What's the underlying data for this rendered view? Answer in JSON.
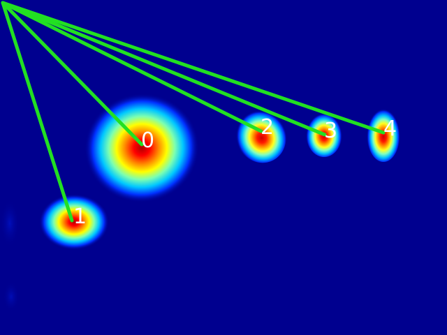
{
  "heatmap": {
    "background_color": "#00008f",
    "colormap": [
      "#00008f",
      "#0030ff",
      "#00c8ff",
      "#7dffb0",
      "#ffff00",
      "#ff8c00",
      "#ff0000",
      "#b00000"
    ],
    "line_color": "#22e022",
    "blobs": [
      {
        "id": "0",
        "label": "0"
      },
      {
        "id": "1",
        "label": "1"
      },
      {
        "id": "2",
        "label": "2"
      },
      {
        "id": "3",
        "label": "3"
      },
      {
        "id": "4",
        "label": "4"
      }
    ]
  }
}
